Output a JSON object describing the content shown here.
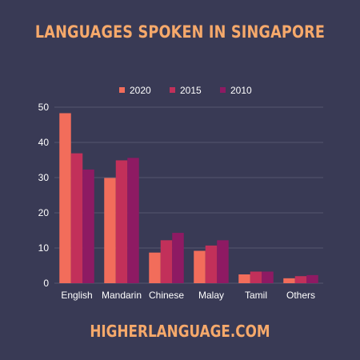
{
  "title": "LANGUAGES SPOKEN IN SINGAPORE",
  "footer": "HIGHERLANGUAGE.COM",
  "colors": {
    "background": "#393a55",
    "accent": "#f6a96b",
    "grid": "#55566f"
  },
  "chart_data": {
    "type": "bar",
    "categories": [
      "English",
      "Mandarin",
      "Chinese",
      "Malay",
      "Tamil",
      "Others"
    ],
    "series": [
      {
        "name": "2020",
        "color": "#f26d5b",
        "values": [
          48.3,
          29.9,
          8.7,
          9.2,
          2.5,
          1.4
        ]
      },
      {
        "name": "2015",
        "color": "#c2305a",
        "values": [
          36.9,
          34.9,
          12.2,
          10.7,
          3.3,
          2.0
        ]
      },
      {
        "name": "2010",
        "color": "#8e1a63",
        "values": [
          32.3,
          35.6,
          14.3,
          12.2,
          3.3,
          2.3
        ]
      }
    ],
    "ylim": [
      0,
      50
    ],
    "yticks": [
      0,
      10,
      20,
      30,
      40,
      50
    ],
    "grid": true,
    "legend": "top-center"
  }
}
